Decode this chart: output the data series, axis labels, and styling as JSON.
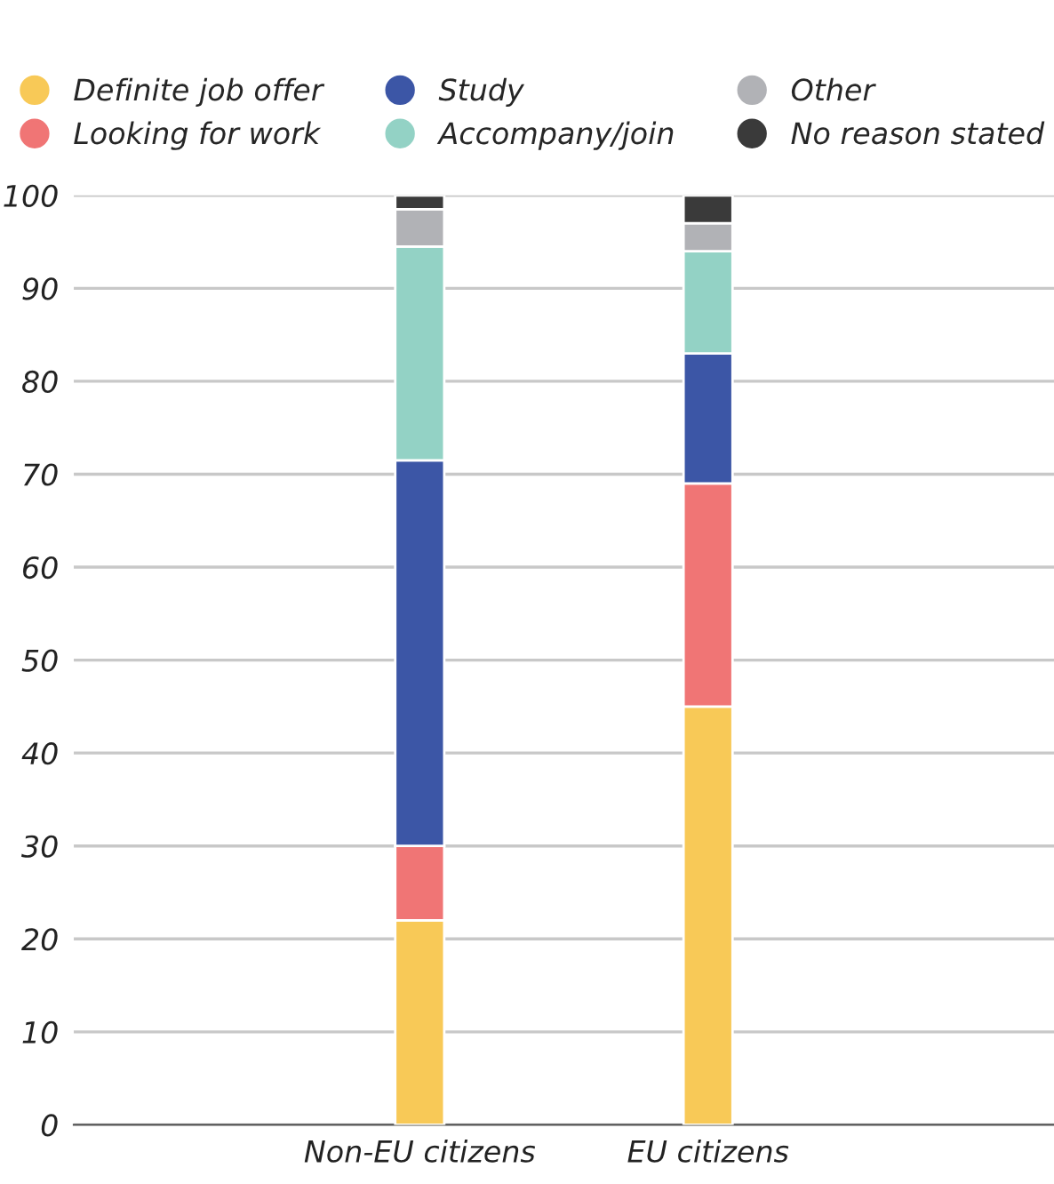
{
  "chart_data": {
    "type": "bar",
    "stacked": true,
    "categories": [
      "Non-EU citizens",
      "EU citizens"
    ],
    "series": [
      {
        "name": "Definite job offer",
        "color": "#f8c957",
        "values": [
          22,
          45
        ]
      },
      {
        "name": "Looking for work",
        "color": "#f07575",
        "values": [
          8,
          24
        ]
      },
      {
        "name": "Study",
        "color": "#3c56a6",
        "values": [
          41.5,
          14
        ]
      },
      {
        "name": "Accompany/join",
        "color": "#93d2c5",
        "values": [
          23,
          11
        ]
      },
      {
        "name": "Other",
        "color": "#b1b2b6",
        "values": [
          4,
          3
        ]
      },
      {
        "name": "No reason stated",
        "color": "#3a3a3a",
        "values": [
          1.5,
          3
        ]
      }
    ],
    "ylim": [
      0,
      100
    ],
    "yticks": [
      0,
      10,
      20,
      30,
      40,
      50,
      60,
      70,
      80,
      90,
      100
    ],
    "grid": "y",
    "legend": "top"
  }
}
